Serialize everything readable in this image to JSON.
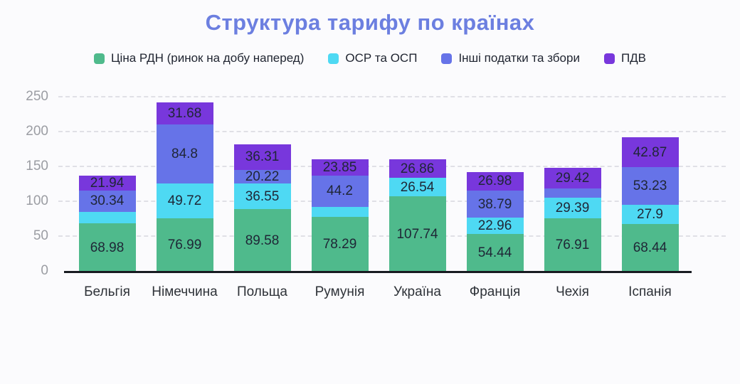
{
  "page": {
    "title": "Структура тарифу по країнах"
  },
  "chart_data": {
    "type": "bar",
    "stacked": true,
    "title": "Структура тарифу по країнах",
    "categories": [
      "Бельгія",
      "Німеччина",
      "Польща",
      "Румунія",
      "Україна",
      "Франція",
      "Чехія",
      "Іспанія"
    ],
    "series": [
      {
        "name": "Ціна РДН (ринок на добу наперед)",
        "color": "#4fba8c",
        "values": [
          68.98,
          76.99,
          89.58,
          78.29,
          107.74,
          54.44,
          76.91,
          68.44
        ],
        "labels": [
          "68.98",
          "76.99",
          "89.58",
          "78.29",
          "107.74",
          "54.44",
          "76.91",
          "68.44"
        ]
      },
      {
        "name": "ОСР та ОСП",
        "color": "#4ed9f3",
        "values": [
          17,
          49.72,
          36.55,
          15,
          26.54,
          22.96,
          29.39,
          27.9
        ],
        "labels": [
          "",
          "49.72",
          "36.55",
          "",
          "26.54",
          "22.96",
          "29.39",
          "27.9"
        ]
      },
      {
        "name": "Інші податки та збори",
        "color": "#6673e8",
        "values": [
          30.34,
          84.8,
          20.22,
          44.2,
          0,
          38.79,
          13,
          53.23
        ],
        "labels": [
          "30.34",
          "84.8",
          "20.22",
          "44.2",
          "",
          "38.79",
          "",
          "53.23"
        ]
      },
      {
        "name": "ПДВ",
        "color": "#7837dc",
        "values": [
          21.94,
          31.68,
          36.31,
          23.85,
          26.86,
          26.98,
          29.42,
          42.87
        ],
        "labels": [
          "21.94",
          "31.68",
          "36.31",
          "23.85",
          "26.86",
          "26.98",
          "29.42",
          "42.87"
        ]
      }
    ],
    "ylim": [
      0,
      250
    ],
    "yticks": [
      250,
      200,
      150,
      100,
      50,
      0
    ],
    "grid": "horizontal-dashed",
    "legend_position": "top",
    "colors": {
      "title": "#6c7fe0",
      "segment_label_text": "#1f2636",
      "y_tick_text": "#9b9da3",
      "x_label_text": "#2e3238",
      "gridline": "#e0e0e6",
      "axis_line": "#181b21",
      "background": "#fbfbfd"
    }
  }
}
